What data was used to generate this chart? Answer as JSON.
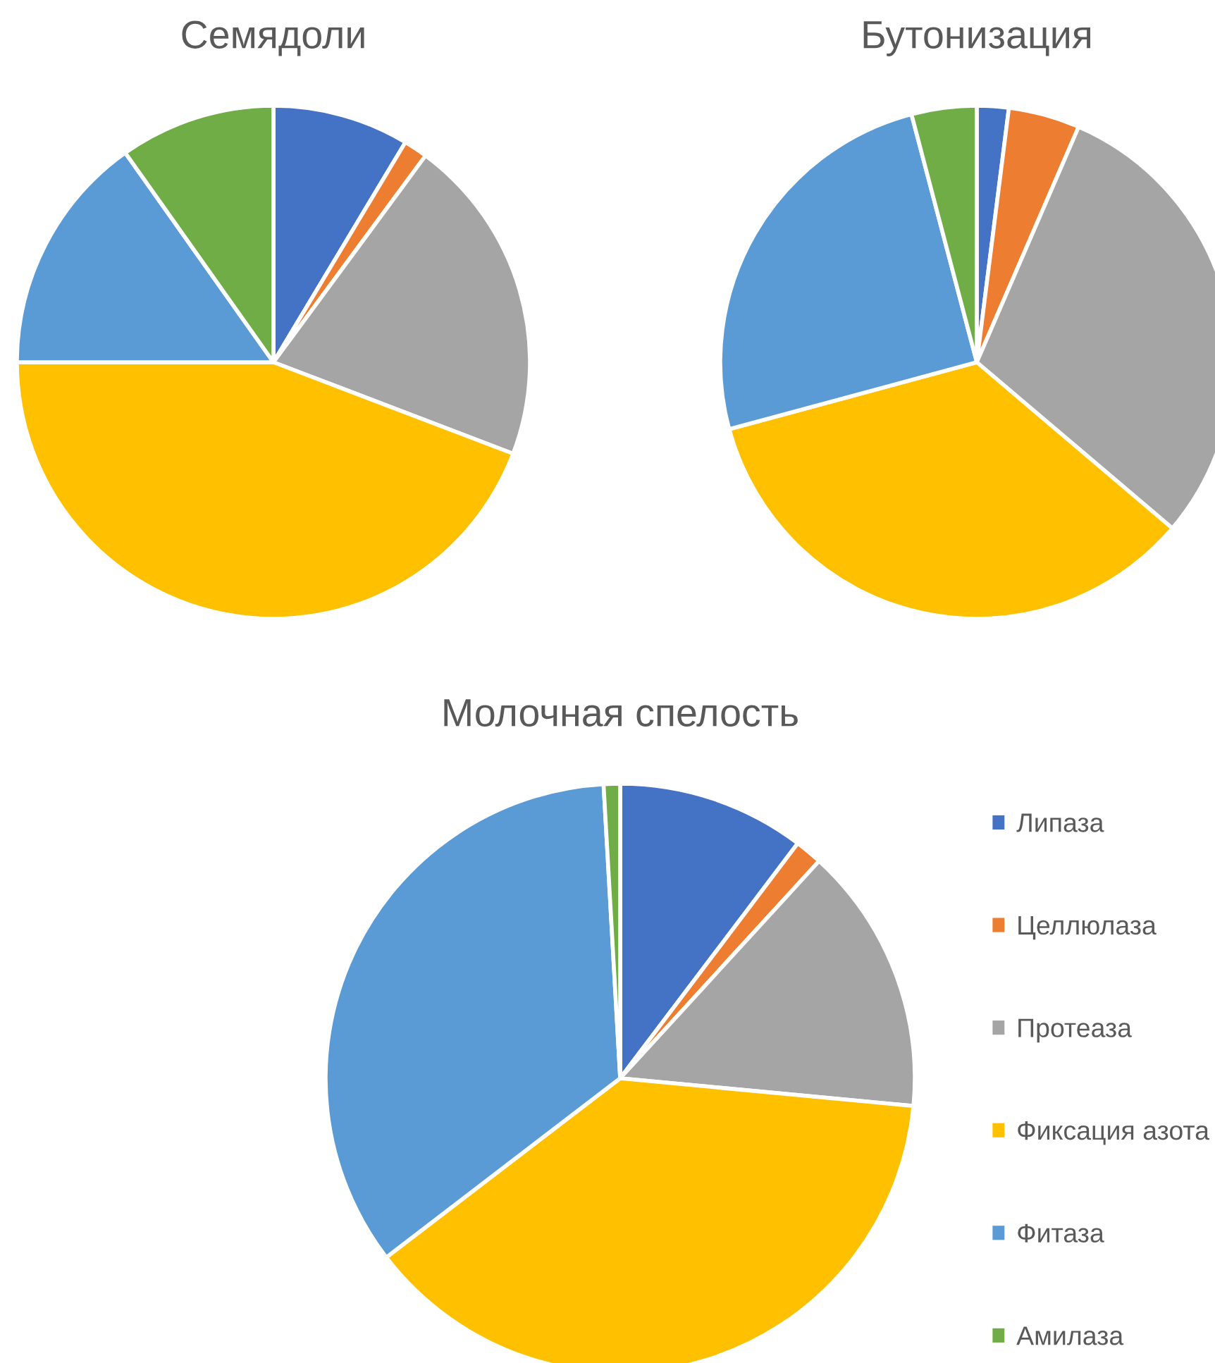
{
  "chart_data": {
    "type": "pie",
    "categories": [
      "Липаза",
      "Целлюлаза",
      "Протеаза",
      "Фиксация азота",
      "Фитаза",
      "Амилаза"
    ],
    "colors": [
      "#4472c4",
      "#ed7d31",
      "#a5a5a5",
      "#ffc000",
      "#5b9bd5",
      "#70ad47"
    ],
    "legend": "bottom right",
    "series": [
      {
        "name": "Семядоли",
        "values": [
          8.6,
          1.5,
          20.7,
          44.2,
          15.2,
          9.8
        ]
      },
      {
        "name": "Бутонизация",
        "values": [
          2.0,
          4.5,
          29.7,
          34.6,
          25.1,
          4.1
        ]
      },
      {
        "name": "Молочная спелость",
        "values": [
          10.3,
          1.5,
          14.7,
          38.1,
          34.5,
          0.9
        ]
      }
    ]
  }
}
